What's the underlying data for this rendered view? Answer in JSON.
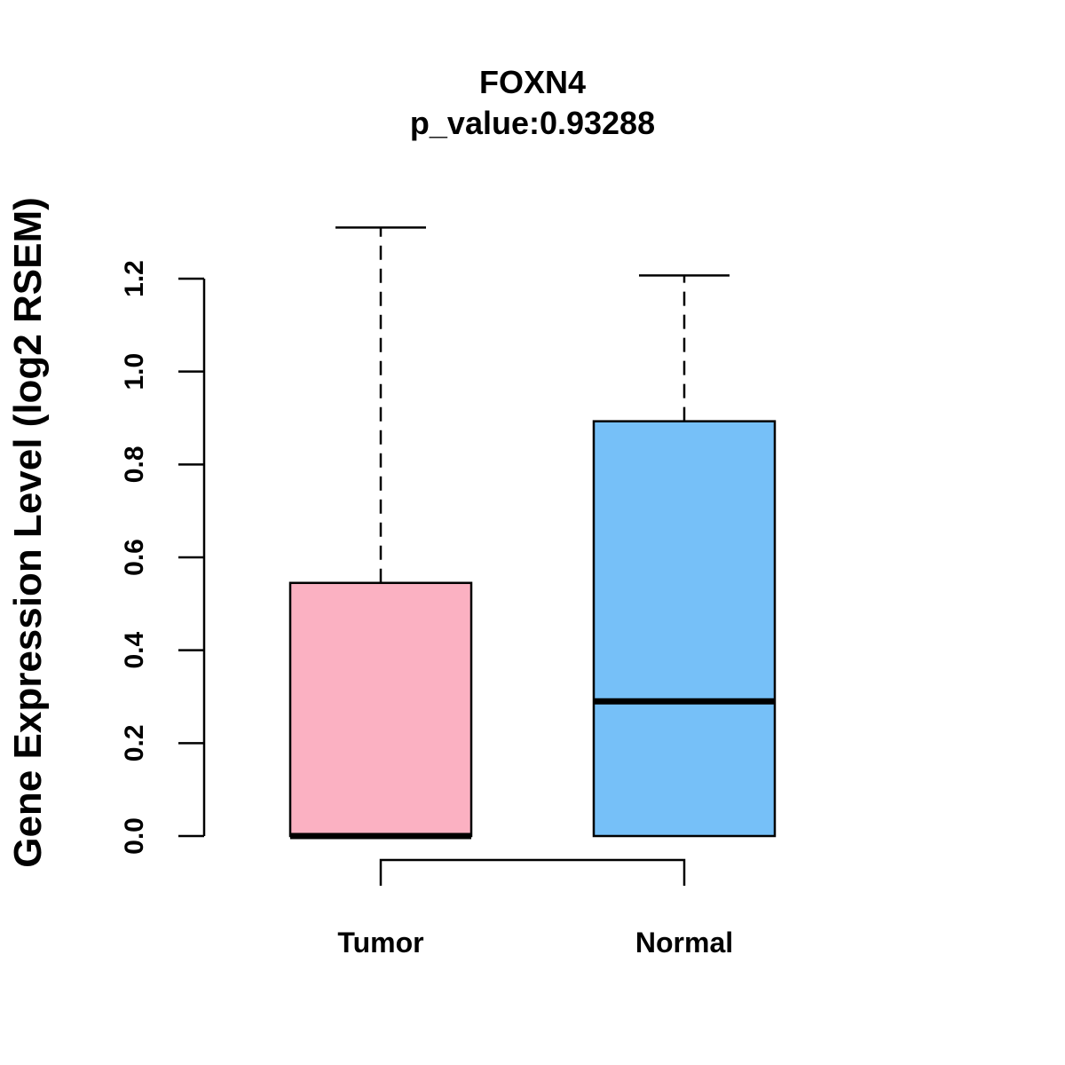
{
  "chart_data": {
    "type": "boxplot",
    "title": "FOXN4",
    "subtitle": "p_value:0.93288",
    "ylabel": "Gene Expression Level (log2 RSEM)",
    "xlabel": "",
    "ylim": [
      0,
      1.2
    ],
    "yticks": [
      "0.0",
      "0.2",
      "0.4",
      "0.6",
      "0.8",
      "1.0",
      "1.2"
    ],
    "groups": [
      {
        "name": "Tumor",
        "min": 0.0,
        "q1": 0.0,
        "median": 0.0,
        "q3": 0.545,
        "max": 1.31,
        "color": "#FBB1C2"
      },
      {
        "name": "Normal",
        "min": 0.0,
        "q1": 0.0,
        "median": 0.29,
        "q3": 0.893,
        "max": 1.207,
        "color": "#76C0F8"
      }
    ],
    "comparison_bracket": [
      "Tumor",
      "Normal"
    ]
  }
}
